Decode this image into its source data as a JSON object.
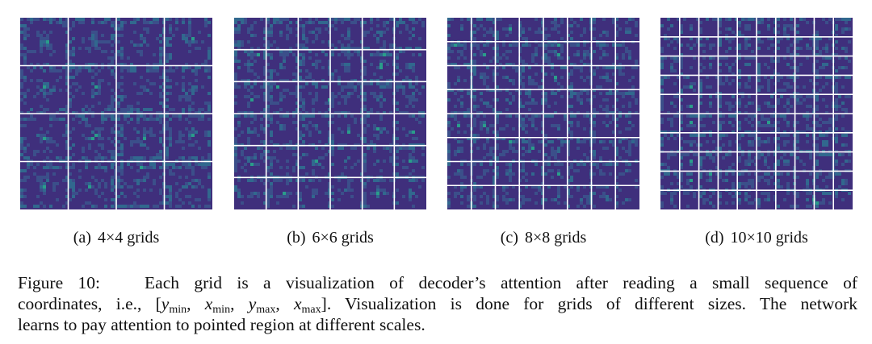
{
  "panels": [
    {
      "label": "(a)",
      "caption": "4×4 grids"
    },
    {
      "label": "(b)",
      "caption": "6×6 grids"
    },
    {
      "label": "(c)",
      "caption": "8×8 grids"
    },
    {
      "label": "(d)",
      "caption": "10×10 grids"
    }
  ],
  "caption": {
    "label": "Figure 10:",
    "lines": [
      {
        "text": "Each grid is a visualization of decoder’s attention after reading a small sequence of"
      },
      {
        "before": "coordinates, i.e., ",
        "math": {
          "open": "[",
          "sep": ",",
          "close": "]",
          "terms": [
            {
              "var": "y",
              "sub": "min"
            },
            {
              "var": "x",
              "sub": "min"
            },
            {
              "var": "y",
              "sub": "max"
            },
            {
              "var": "x",
              "sub": "max"
            }
          ]
        },
        "after": ". Visualization is done for grids of different sizes. The network"
      },
      {
        "text": "learns to pay attention to pointed region at different scales."
      }
    ]
  }
}
